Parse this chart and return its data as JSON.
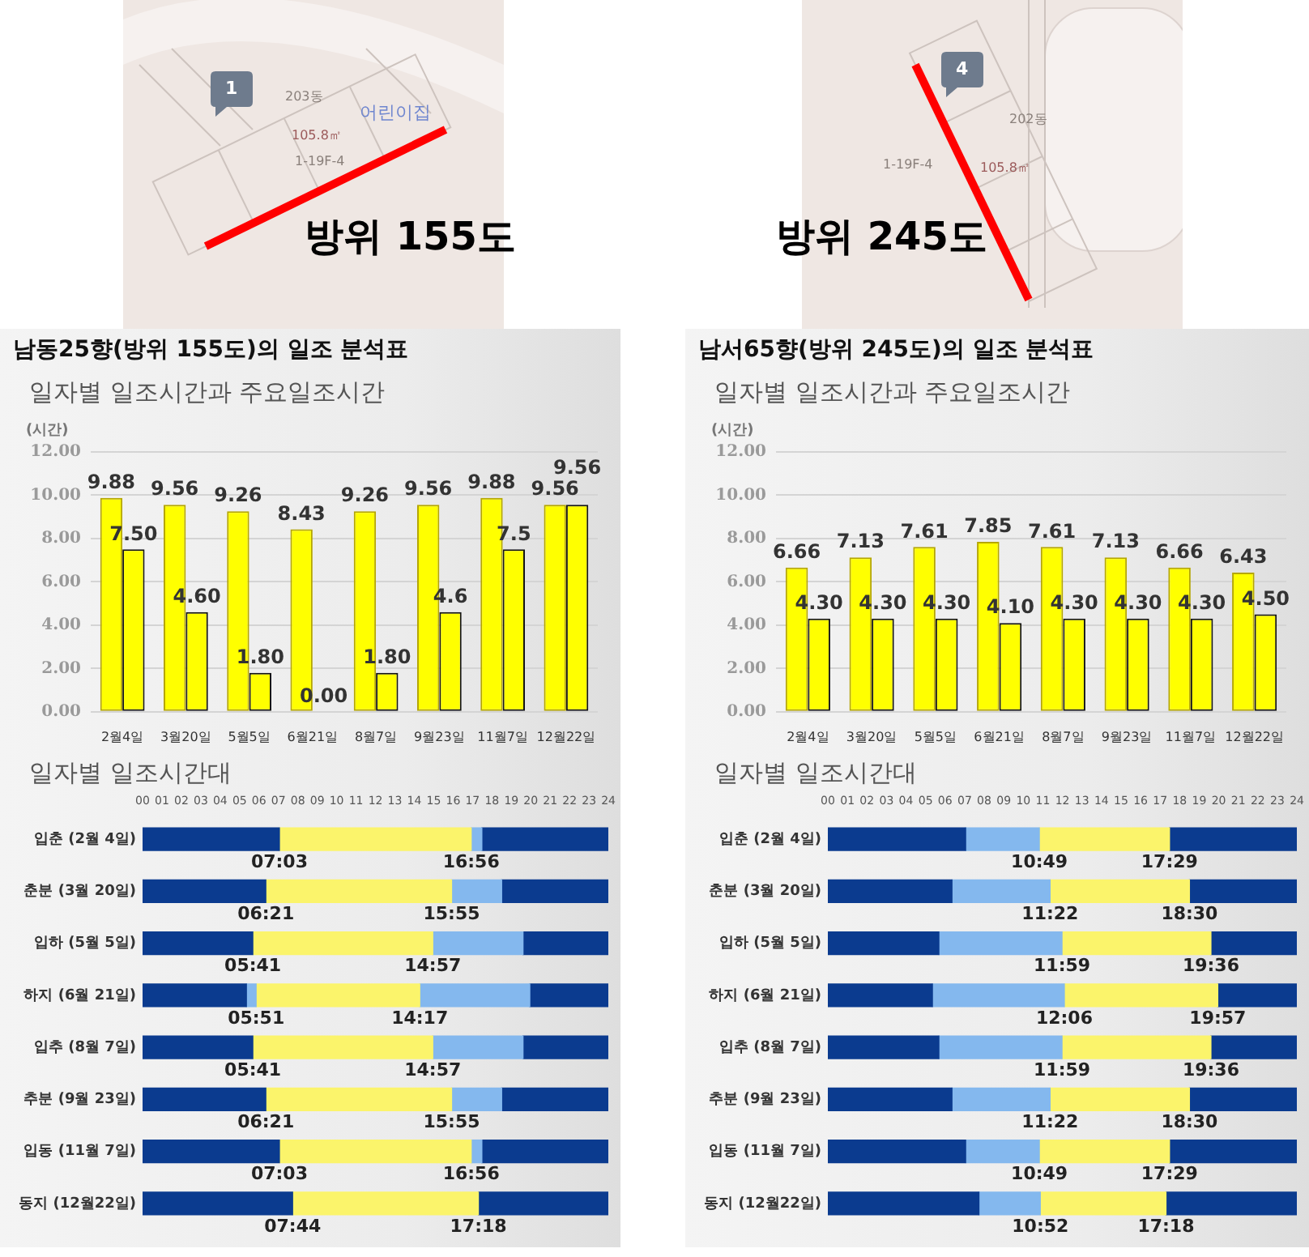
{
  "chart_data": [
    {
      "type": "other",
      "title": "방위 155도",
      "annotations": [
        "1",
        "203동",
        "105.8㎡",
        "1-19F-4",
        "어린이집"
      ]
    },
    {
      "type": "other",
      "title": "방위 245도",
      "annotations": [
        "4",
        "202동",
        "105.8㎡",
        "1-19F-4"
      ]
    },
    {
      "type": "bar",
      "title": "남동25향(방위 155도)의 일조 분석표",
      "subtitle": "일자별 일조시간과 주요일조시간",
      "ylabel": "(시간)",
      "categories": [
        "2월4일",
        "3월20일",
        "5월5일",
        "6월21일",
        "8월7일",
        "9월23일",
        "11월7일",
        "12월22일"
      ],
      "series": [
        {
          "color": "#ffff00",
          "values": [
            9.88,
            9.56,
            9.26,
            8.43,
            9.26,
            9.56,
            9.88,
            9.56
          ],
          "value_labels": [
            "9.88",
            "9.56",
            "9.26",
            "8.43",
            "9.26",
            "9.56",
            "9.88",
            "9.56"
          ]
        },
        {
          "color": "#ffff00",
          "values": [
            7.5,
            4.6,
            1.8,
            0,
            1.8,
            4.6,
            7.5,
            9.56
          ],
          "value_labels": [
            "7.50",
            "4.60",
            "1.80",
            "0.00",
            "1.80",
            "4.6",
            "7.5",
            "9.56"
          ]
        }
      ],
      "ylim": [
        0,
        12
      ],
      "yticks": [
        {
          "value": 0,
          "label": "0.00"
        },
        {
          "value": 2,
          "label": "2.00"
        },
        {
          "value": 4,
          "label": "4.00"
        },
        {
          "value": 6,
          "label": "6.00"
        },
        {
          "value": 8,
          "label": "8.00"
        },
        {
          "value": 10,
          "label": "10.00"
        },
        {
          "value": 12,
          "label": "12.00"
        }
      ],
      "grid": "y"
    },
    {
      "type": "bar",
      "title": "남서65향(방위 245도)의 일조 분석표",
      "subtitle": "일자별 일조시간과 주요일조시간",
      "ylabel": "(시간)",
      "categories": [
        "2월4일",
        "3월20일",
        "5월5일",
        "6월21일",
        "8월7일",
        "9월23일",
        "11월7일",
        "12월22일"
      ],
      "series": [
        {
          "color": "#ffff00",
          "values": [
            6.66,
            7.13,
            7.61,
            7.85,
            7.61,
            7.13,
            6.66,
            6.43
          ],
          "value_labels": [
            "6.66",
            "7.13",
            "7.61",
            "7.85",
            "7.61",
            "7.13",
            "6.66",
            "6.43"
          ]
        },
        {
          "color": "#ffff00",
          "values": [
            4.3,
            4.3,
            4.3,
            4.1,
            4.3,
            4.3,
            4.3,
            4.5
          ],
          "value_labels": [
            "4.30",
            "4.30",
            "4.30",
            "4.10",
            "4.30",
            "4.30",
            "4.30",
            "4.50"
          ]
        }
      ],
      "ylim": [
        0,
        12
      ],
      "yticks": [
        {
          "value": 0,
          "label": "0.00"
        },
        {
          "value": 2,
          "label": "2.00"
        },
        {
          "value": 4,
          "label": "4.00"
        },
        {
          "value": 6,
          "label": "6.00"
        },
        {
          "value": 8,
          "label": "8.00"
        },
        {
          "value": 10,
          "label": "10.00"
        },
        {
          "value": 12,
          "label": "12.00"
        }
      ],
      "grid": "y"
    },
    {
      "type": "bar",
      "orientation": "horizontal",
      "stacked": true,
      "title": "일자별 일조시간대",
      "categories": [
        "입춘 (2월 4일)",
        "춘분 (3월 20일)",
        "입하 (5월 5일)",
        "하지 (6월 21일)",
        "입추 (8월 7일)",
        "추분 (9월 23일)",
        "입동 (11월 7일)",
        "동지 (12월22일)"
      ],
      "series": [
        {
          "color": "#0b3b8f",
          "values": [
            7.05,
            6.35,
            5.68,
            5.35,
            5.68,
            6.35,
            7.05,
            7.73
          ]
        },
        {
          "color": "#84b8ee",
          "values": [
            null,
            null,
            null,
            0.5,
            null,
            null,
            null,
            null
          ]
        },
        {
          "color": "#fbf46b",
          "values": [
            9.88,
            9.57,
            9.27,
            8.43,
            9.27,
            9.57,
            9.88,
            9.57
          ]
        },
        {
          "color": "#84b8ee",
          "values": [
            0.55,
            2.58,
            4.65,
            5.67,
            4.65,
            2.58,
            0.55,
            null
          ]
        },
        {
          "color": "#0b3b8f",
          "values": [
            6.52,
            5.5,
            4.4,
            4.05,
            4.4,
            5.5,
            6.52,
            6.7
          ]
        }
      ],
      "xlim": [
        0,
        24
      ],
      "xticks": [
        {
          "value": 0,
          "label": "00"
        },
        {
          "value": 1,
          "label": "01"
        },
        {
          "value": 2,
          "label": "02"
        },
        {
          "value": 3,
          "label": "03"
        },
        {
          "value": 4,
          "label": "04"
        },
        {
          "value": 5,
          "label": "05"
        },
        {
          "value": 6,
          "label": "06"
        },
        {
          "value": 7,
          "label": "07"
        },
        {
          "value": 8,
          "label": "08"
        },
        {
          "value": 9,
          "label": "09"
        },
        10,
        11,
        12,
        13,
        14,
        15,
        16,
        17,
        18,
        19,
        20,
        21,
        22,
        23,
        24
      ],
      "annotations": [
        {
          "text": "07:03",
          "x": 7.05,
          "y": "입춘 (2월 4일)"
        },
        {
          "text": "16:56",
          "x": 16.93,
          "y": "입춘 (2월 4일)"
        },
        {
          "text": "06:21",
          "x": 6.35,
          "y": "춘분 (3월 20일)"
        },
        {
          "text": "15:55",
          "x": 15.92,
          "y": "춘분 (3월 20일)"
        },
        {
          "text": "05:41",
          "x": 5.68,
          "y": "입하 (5월 5일)"
        },
        {
          "text": "14:57",
          "x": 14.95,
          "y": "입하 (5월 5일)"
        },
        {
          "text": "05:51",
          "x": 5.85,
          "y": "하지 (6월 21일)"
        },
        {
          "text": "14:17",
          "x": 14.28,
          "y": "하지 (6월 21일)"
        },
        {
          "text": "05:41",
          "x": 5.68,
          "y": "입추 (8월 7일)"
        },
        {
          "text": "14:57",
          "x": 14.95,
          "y": "입추 (8월 7일)"
        },
        {
          "text": "06:21",
          "x": 6.35,
          "y": "추분 (9월 23일)"
        },
        {
          "text": "15:55",
          "x": 15.92,
          "y": "추분 (9월 23일)"
        },
        {
          "text": "07:03",
          "x": 7.05,
          "y": "입동 (11월 7일)"
        },
        {
          "text": "16:56",
          "x": 16.93,
          "y": "입동 (11월 7일)"
        },
        {
          "text": "07:44",
          "x": 7.73,
          "y": "동지 (12월22일)"
        },
        {
          "text": "17:18",
          "x": 17.3,
          "y": "동지 (12월22일)"
        }
      ]
    },
    {
      "type": "bar",
      "orientation": "horizontal",
      "stacked": true,
      "title": "일자별 일조시간대",
      "categories": [
        "입춘 (2월 4일)",
        "춘분 (3월 20일)",
        "입하 (5월 5일)",
        "하지 (6월 21일)",
        "입추 (8월 7일)",
        "추분 (9월 23일)",
        "입동 (11월 7일)",
        "동지 (12월22일)"
      ],
      "series": [
        {
          "color": "#0b3b8f",
          "values": [
            7.05,
            6.35,
            5.68,
            5.35,
            5.68,
            6.35,
            7.05,
            7.73
          ]
        },
        {
          "color": "#84b8ee",
          "values": [
            3.77,
            5.02,
            6.3,
            6.75,
            6.3,
            5.02,
            3.77,
            3.14
          ]
        },
        {
          "color": "#fbf46b",
          "values": [
            6.66,
            7.13,
            7.62,
            7.85,
            7.62,
            7.13,
            6.66,
            6.43
          ]
        },
        {
          "color": "#0b3b8f",
          "values": [
            6.52,
            5.5,
            4.4,
            4.05,
            4.4,
            5.5,
            6.52,
            6.7
          ]
        }
      ],
      "xlim": [
        0,
        24
      ],
      "xticks": [
        {
          "value": 0,
          "label": "00"
        },
        {
          "value": 1,
          "label": "01"
        },
        {
          "value": 2,
          "label": "02"
        },
        {
          "value": 3,
          "label": "03"
        },
        {
          "value": 4,
          "label": "04"
        },
        {
          "value": 5,
          "label": "05"
        },
        {
          "value": 6,
          "label": "06"
        },
        {
          "value": 7,
          "label": "07"
        },
        {
          "value": 8,
          "label": "08"
        },
        {
          "value": 9,
          "label": "09"
        },
        10,
        11,
        12,
        13,
        14,
        15,
        16,
        17,
        18,
        19,
        20,
        21,
        22,
        23,
        24
      ],
      "annotations": [
        {
          "text": "10:49",
          "x": 10.82,
          "y": "입춘 (2월 4일)"
        },
        {
          "text": "17:29",
          "x": 17.48,
          "y": "입춘 (2월 4일)"
        },
        {
          "text": "11:22",
          "x": 11.37,
          "y": "춘분 (3월 20일)"
        },
        {
          "text": "18:30",
          "x": 18.5,
          "y": "춘분 (3월 20일)"
        },
        {
          "text": "11:59",
          "x": 11.98,
          "y": "입하 (5월 5일)"
        },
        {
          "text": "19:36",
          "x": 19.6,
          "y": "입하 (5월 5일)"
        },
        {
          "text": "12:06",
          "x": 12.1,
          "y": "하지 (6월 21일)"
        },
        {
          "text": "19:57",
          "x": 19.95,
          "y": "하지 (6월 21일)"
        },
        {
          "text": "11:59",
          "x": 11.98,
          "y": "입추 (8월 7일)"
        },
        {
          "text": "19:36",
          "x": 19.6,
          "y": "입추 (8월 7일)"
        },
        {
          "text": "11:22",
          "x": 11.37,
          "y": "추분 (9월 23일)"
        },
        {
          "text": "18:30",
          "x": 18.5,
          "y": "추분 (9월 23일)"
        },
        {
          "text": "10:49",
          "x": 10.82,
          "y": "입동 (11월 7일)"
        },
        {
          "text": "17:29",
          "x": 17.48,
          "y": "입동 (11월 7일)"
        },
        {
          "text": "10:52",
          "x": 10.87,
          "y": "동지 (12월22일)"
        },
        {
          "text": "17:18",
          "x": 17.3,
          "y": "동지 (12월22일)"
        }
      ]
    }
  ]
}
